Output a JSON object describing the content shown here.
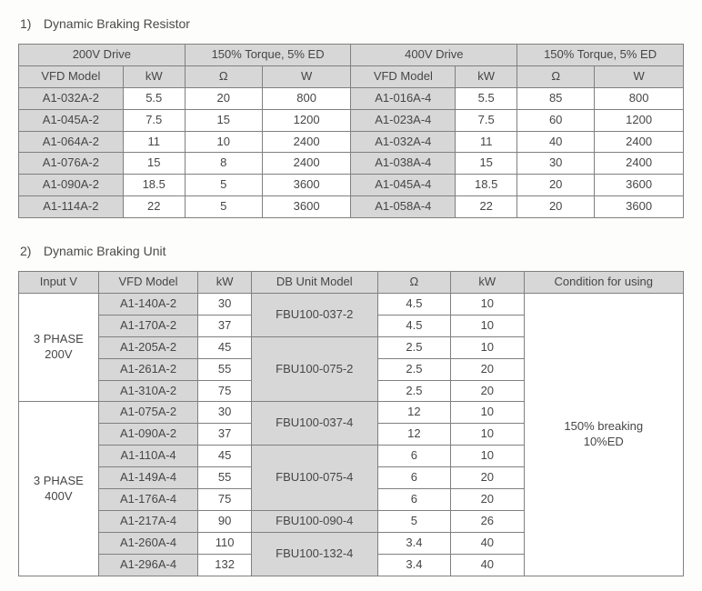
{
  "section1": {
    "title_num": "1)",
    "title_text": "Dynamic Braking Resistor",
    "h_drive_200": "200V Drive",
    "h_torque_a": "150% Torque, 5% ED",
    "h_drive_400": "400V Drive",
    "h_torque_b": "150% Torque, 5% ED",
    "sub_vfd": "VFD Model",
    "sub_kw": "kW",
    "sub_ohm": "Ω",
    "sub_w": "W",
    "rows": [
      {
        "m1": "A1-032A-2",
        "kw1": "5.5",
        "ohm1": "20",
        "w1": "800",
        "m2": "A1-016A-4",
        "kw2": "5.5",
        "ohm2": "85",
        "w2": "800"
      },
      {
        "m1": "A1-045A-2",
        "kw1": "7.5",
        "ohm1": "15",
        "w1": "1200",
        "m2": "A1-023A-4",
        "kw2": "7.5",
        "ohm2": "60",
        "w2": "1200"
      },
      {
        "m1": "A1-064A-2",
        "kw1": "11",
        "ohm1": "10",
        "w1": "2400",
        "m2": "A1-032A-4",
        "kw2": "11",
        "ohm2": "40",
        "w2": "2400"
      },
      {
        "m1": "A1-076A-2",
        "kw1": "15",
        "ohm1": "8",
        "w1": "2400",
        "m2": "A1-038A-4",
        "kw2": "15",
        "ohm2": "30",
        "w2": "2400"
      },
      {
        "m1": "A1-090A-2",
        "kw1": "18.5",
        "ohm1": "5",
        "w1": "3600",
        "m2": "A1-045A-4",
        "kw2": "18.5",
        "ohm2": "20",
        "w2": "3600"
      },
      {
        "m1": "A1-114A-2",
        "kw1": "22",
        "ohm1": "5",
        "w1": "3600",
        "m2": "A1-058A-4",
        "kw2": "22",
        "ohm2": "20",
        "w2": "3600"
      }
    ]
  },
  "section2": {
    "title_num": "2)",
    "title_text": "Dynamic Braking Unit",
    "h_inputv": "Input V",
    "h_vfd": "VFD Model",
    "h_kw": "kW",
    "h_dbunit": "DB Unit Model",
    "h_ohm": "Ω",
    "h_kw2": "kW",
    "h_cond": "Condition for using",
    "inputv_200": "3 PHASE\n200V",
    "inputv_400": "3 PHASE\n400V",
    "cond_text": "150% breaking\n10%ED",
    "db_037_2": "FBU100-037-2",
    "db_075_2": "FBU100-075-2",
    "db_037_4": "FBU100-037-4",
    "db_075_4": "FBU100-075-4",
    "db_090_4": "FBU100-090-4",
    "db_132_4": "FBU100-132-4",
    "r": [
      {
        "m": "A1-140A-2",
        "kw": "30",
        "ohm": "4.5",
        "kw2": "10"
      },
      {
        "m": "A1-170A-2",
        "kw": "37",
        "ohm": "4.5",
        "kw2": "10"
      },
      {
        "m": "A1-205A-2",
        "kw": "45",
        "ohm": "2.5",
        "kw2": "10"
      },
      {
        "m": "A1-261A-2",
        "kw": "55",
        "ohm": "2.5",
        "kw2": "20"
      },
      {
        "m": "A1-310A-2",
        "kw": "75",
        "ohm": "2.5",
        "kw2": "20"
      },
      {
        "m": "A1-075A-2",
        "kw": "30",
        "ohm": "12",
        "kw2": "10"
      },
      {
        "m": "A1-090A-2",
        "kw": "37",
        "ohm": "12",
        "kw2": "10"
      },
      {
        "m": "A1-110A-4",
        "kw": "45",
        "ohm": "6",
        "kw2": "10"
      },
      {
        "m": "A1-149A-4",
        "kw": "55",
        "ohm": "6",
        "kw2": "20"
      },
      {
        "m": "A1-176A-4",
        "kw": "75",
        "ohm": "6",
        "kw2": "20"
      },
      {
        "m": "A1-217A-4",
        "kw": "90",
        "ohm": "5",
        "kw2": "26"
      },
      {
        "m": "A1-260A-4",
        "kw": "110",
        "ohm": "3.4",
        "kw2": "40"
      },
      {
        "m": "A1-296A-4",
        "kw": "132",
        "ohm": "3.4",
        "kw2": "40"
      }
    ]
  },
  "style": {
    "col_t1": [
      "13.5%",
      "8%",
      "10%",
      "11.5%",
      "13.5%",
      "8%",
      "10%",
      "11.5%"
    ],
    "col_t2": [
      "12%",
      "15%",
      "8%",
      "19%",
      "11%",
      "11%",
      "24%"
    ]
  }
}
